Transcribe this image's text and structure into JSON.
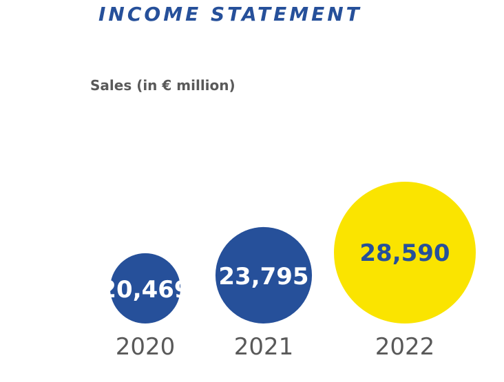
{
  "header": {
    "title": "INCOME STATEMENT"
  },
  "colors": {
    "title": "#26509a",
    "subtitle": "#595959",
    "year_label": "#595959",
    "primary_bubble": "#26509a",
    "highlight_bubble": "#fae400",
    "primary_value_text": "#ffffff",
    "highlight_value_text": "#26509a"
  },
  "chart_data": {
    "type": "bubble",
    "title": "Sales (in € million)",
    "categories": [
      "2020",
      "2021",
      "2022"
    ],
    "values": [
      20469,
      23795,
      28590
    ],
    "value_labels": [
      "20,469",
      "23,795",
      "28,590"
    ],
    "highlighted": "2022"
  }
}
